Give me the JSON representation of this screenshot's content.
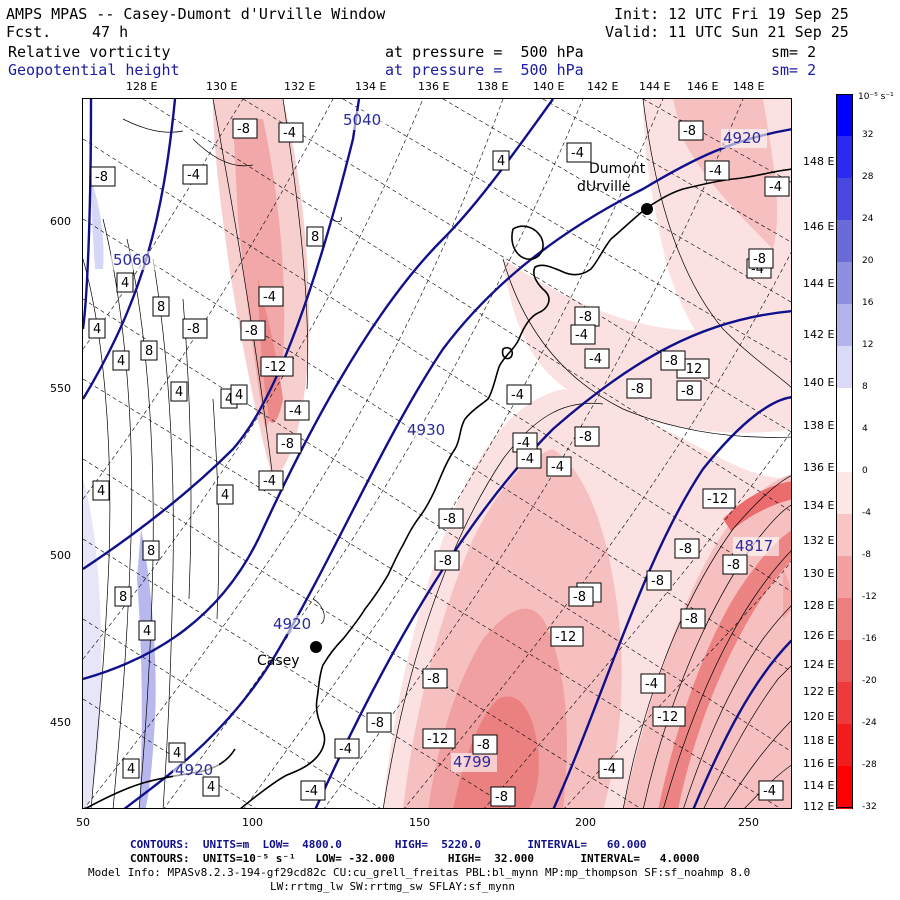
{
  "header": {
    "title": "AMPS MPAS -- Casey-Dumont d'Urville Window",
    "fcst_label": "Fcst.",
    "fcst_value": "47 h",
    "init": "Init: 12 UTC Fri 19 Sep 25",
    "valid": "Valid: 11 UTC Sun 21 Sep 25",
    "field1_name": "Relative vorticity",
    "field1_level": "at pressure =  500 hPa",
    "field1_sm": "sm= 2",
    "field2_name": "Geopotential height",
    "field2_level": "at pressure =  500 hPa",
    "field2_sm": "sm= 2"
  },
  "axes": {
    "top_lon": [
      "128 E",
      "130 E",
      "132 E",
      "134 E",
      "136 E",
      "138 E",
      "140 E",
      "142 E",
      "144 E",
      "146 E",
      "148 E"
    ],
    "right_lon": [
      "148 E",
      "146 E",
      "144 E",
      "142 E",
      "140 E",
      "138 E",
      "136 E",
      "134 E",
      "132 E",
      "130 E",
      "128 E",
      "126 E",
      "124 E",
      "122 E",
      "120 E",
      "118 E",
      "116 E",
      "114 E",
      "112 E"
    ],
    "left_y": [
      "600",
      "550",
      "500",
      "450"
    ],
    "bottom_x": [
      "50",
      "100",
      "150",
      "200",
      "250"
    ]
  },
  "map": {
    "places": [
      {
        "name": "Casey",
        "label1": "Casey",
        "label2": ""
      },
      {
        "name": "Dumont d'Urville",
        "label1": "Dumont",
        "label2": "dUrville"
      }
    ],
    "height_labels": [
      "5040",
      "5060",
      "4920",
      "4930",
      "4920",
      "4920",
      "4817",
      "4799"
    ],
    "vort_labels": [
      "-8",
      "-4",
      "-8",
      "-4",
      "-4",
      "8",
      "4",
      "4",
      "8",
      "-8",
      "-4",
      "-8",
      "-12",
      "4",
      "4",
      "8",
      "4",
      "4",
      "-4",
      "-8",
      "-4",
      "4",
      "4",
      "8",
      "8",
      "4",
      "-8",
      "-8",
      "4",
      "-4",
      "-8",
      "-4",
      "-8",
      "-4",
      "-8",
      "-4",
      "-4",
      "-4",
      "-8",
      "-8",
      "-12",
      "-12",
      "-8",
      "-8",
      "-4",
      "-4",
      "-8",
      "-4",
      "-8",
      "-8",
      "-12",
      "-8",
      "-8",
      "-12",
      "-8",
      "-4",
      "-12",
      "-8",
      "-4",
      "-4",
      "-8",
      "-8",
      "-4",
      "-4",
      "4",
      "4",
      "4",
      "-4"
    ]
  },
  "colorbar": {
    "units": "10⁻⁵ s⁻¹",
    "labels": [
      "32",
      "28",
      "24",
      "20",
      "16",
      "12",
      "8",
      "4",
      "0",
      "-4",
      "-8",
      "-12",
      "-16",
      "-20",
      "-24",
      "-28",
      "-32"
    ],
    "colors": [
      "#0000ff",
      "#2a2af0",
      "#4848e0",
      "#6a6ad8",
      "#8f8fe2",
      "#b3b3ee",
      "#dadaf8",
      "#ffffff",
      "#ffffff",
      "#fde6e6",
      "#f9c4c4",
      "#f4a0a0",
      "#ee7e7e",
      "#ea5a5a",
      "#ee3a3a",
      "#f21c1c",
      "#ff0000"
    ]
  },
  "footer": {
    "line1": "CONTOURS:  UNITS=m  LOW=  4800.0        HIGH=  5220.0       INTERVAL=   60.000",
    "line2": "CONTOURS:  UNITS=10⁻⁵ s⁻¹   LOW= -32.000        HIGH=  32.000       INTERVAL=   4.0000",
    "line3": "Model Info: MPASv8.2.3-194-gf29cd82c CU:cu_grell_freitas PBL:bl_mynn MP:mp_thompson SF:sf_noahmp 8.0",
    "line4": "LW:rrtmg_lw SW:rrtmg_sw SFLAY:sf_mynn"
  }
}
